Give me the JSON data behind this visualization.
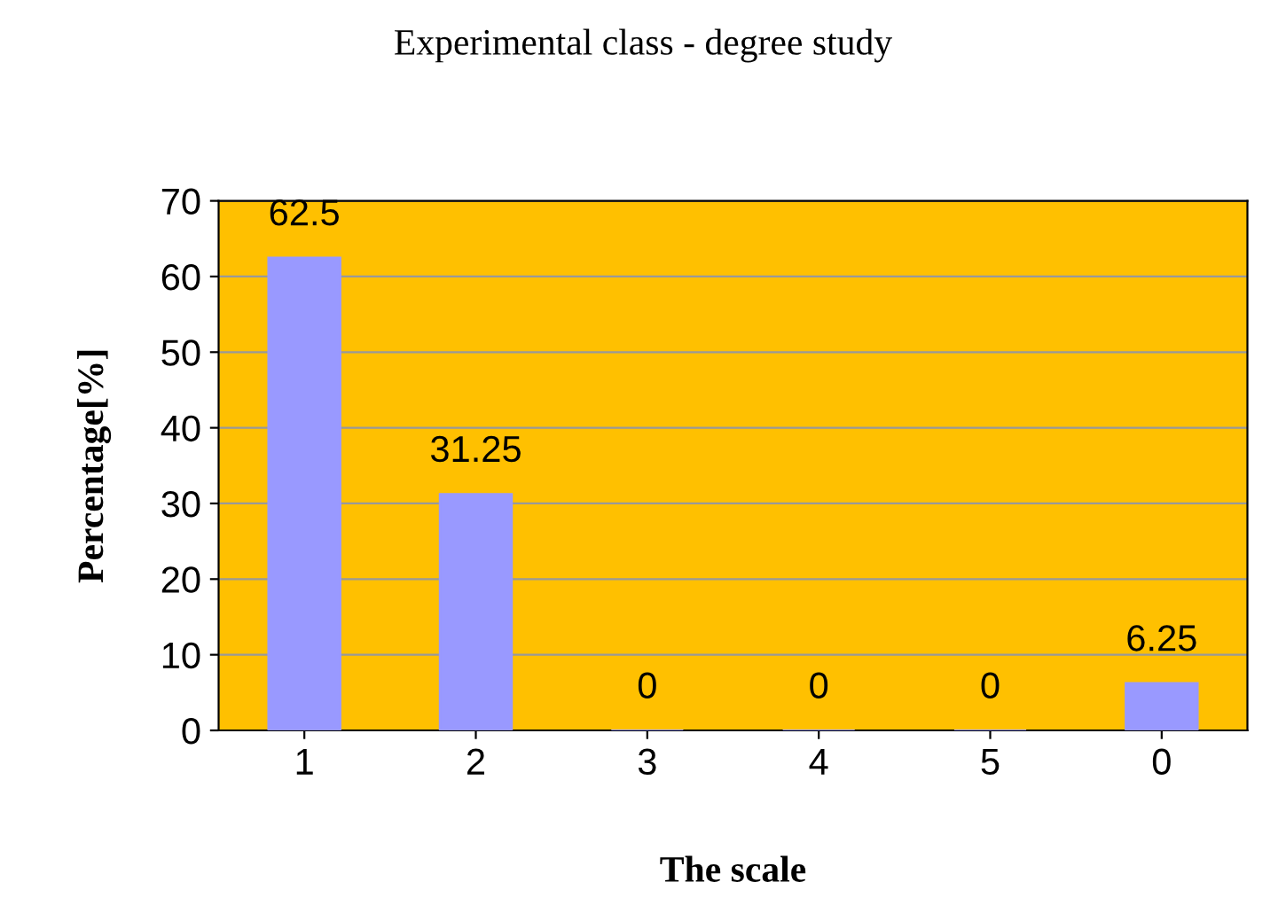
{
  "chart_data": {
    "type": "bar",
    "title": "Experimental class - degree study",
    "xlabel": "The scale",
    "ylabel": "Percentage[%]",
    "categories": [
      "1",
      "2",
      "3",
      "4",
      "5",
      "0"
    ],
    "values": [
      62.5,
      31.25,
      0,
      0,
      0,
      6.25
    ],
    "color": "#9999ff",
    "ylim": [
      0,
      70
    ],
    "yticks": [
      0,
      10,
      20,
      30,
      40,
      50,
      60,
      70
    ],
    "grid": "y",
    "data_labels": true
  }
}
